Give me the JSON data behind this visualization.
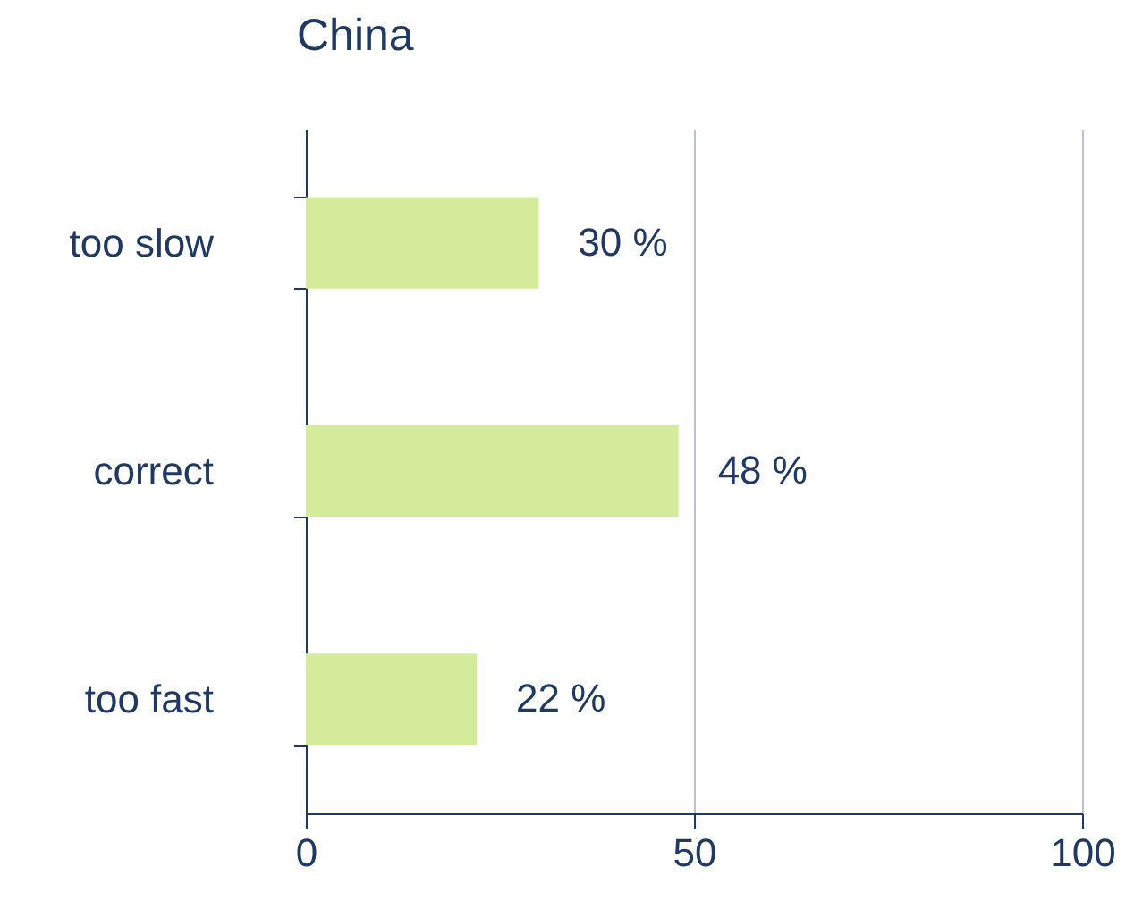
{
  "chart_data": {
    "type": "bar",
    "title": "China",
    "orientation": "horizontal",
    "categories": [
      "too slow",
      "correct",
      "too fast"
    ],
    "values": [
      30,
      48,
      22
    ],
    "value_labels": [
      "30 %",
      "48 %",
      "22 %"
    ],
    "color": "#d4eb9c",
    "xlim": [
      0,
      100
    ],
    "xticks": [
      0,
      50,
      100
    ],
    "grid": "x"
  }
}
